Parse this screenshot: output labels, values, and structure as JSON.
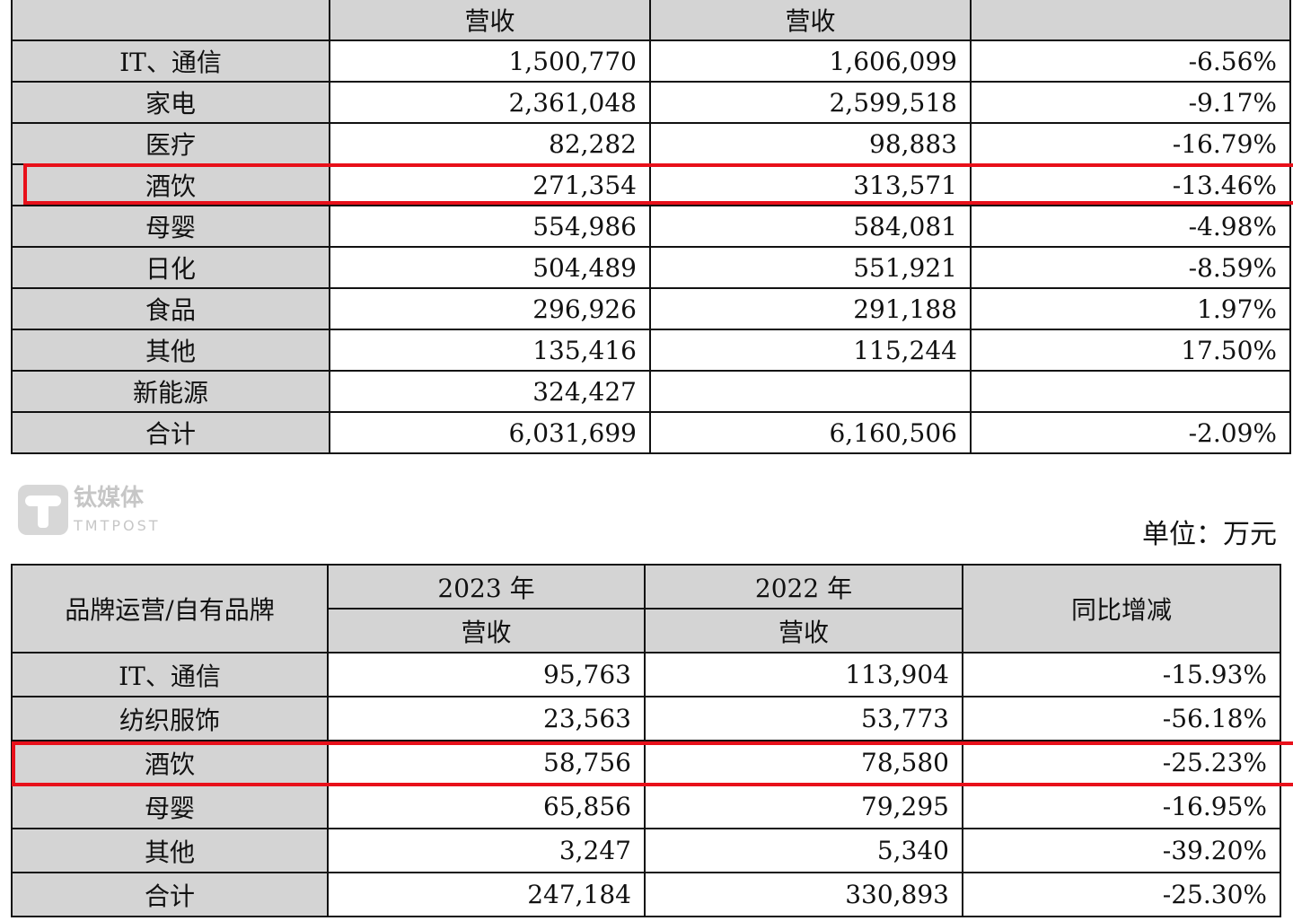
{
  "table1": {
    "header": [
      "",
      "营收",
      "营收",
      ""
    ],
    "rows": [
      [
        "IT、通信",
        "1,500,770",
        "1,606,099",
        "-6.56%"
      ],
      [
        "家电",
        "2,361,048",
        "2,599,518",
        "-9.17%"
      ],
      [
        "医疗",
        "82,282",
        "98,883",
        "-16.79%"
      ],
      [
        "酒饮",
        "271,354",
        "313,571",
        "-13.46%"
      ],
      [
        "母婴",
        "554,986",
        "584,081",
        "-4.98%"
      ],
      [
        "日化",
        "504,489",
        "551,921",
        "-8.59%"
      ],
      [
        "食品",
        "296,926",
        "291,188",
        "1.97%"
      ],
      [
        "其他",
        "135,416",
        "115,244",
        "17.50%"
      ],
      [
        "新能源",
        "324,427",
        "",
        ""
      ],
      [
        "合计",
        "6,031,699",
        "6,160,506",
        "-2.09%"
      ]
    ],
    "highlighted_row": "酒饮"
  },
  "unit_label": "单位：万元",
  "table2": {
    "header_category": "品牌运营/自有品牌",
    "header_year_2023": "2023 年",
    "header_year_2022": "2022 年",
    "header_revenue": "营收",
    "header_change": "同比增减",
    "rows": [
      [
        "IT、通信",
        "95,763",
        "113,904",
        "-15.93%"
      ],
      [
        "纺织服饰",
        "23,563",
        "53,773",
        "-56.18%"
      ],
      [
        "酒饮",
        "58,756",
        "78,580",
        "-25.23%"
      ],
      [
        "母婴",
        "65,856",
        "79,295",
        "-16.95%"
      ],
      [
        "其他",
        "3,247",
        "5,340",
        "-39.20%"
      ],
      [
        "合计",
        "247,184",
        "330,893",
        "-25.30%"
      ]
    ],
    "highlighted_row": "酒饮"
  },
  "watermark": {
    "cn": "钛媒体",
    "en": "TMTPOST"
  },
  "colors": {
    "highlight": "#e8101a",
    "header_bg": "#d4d4d4"
  }
}
